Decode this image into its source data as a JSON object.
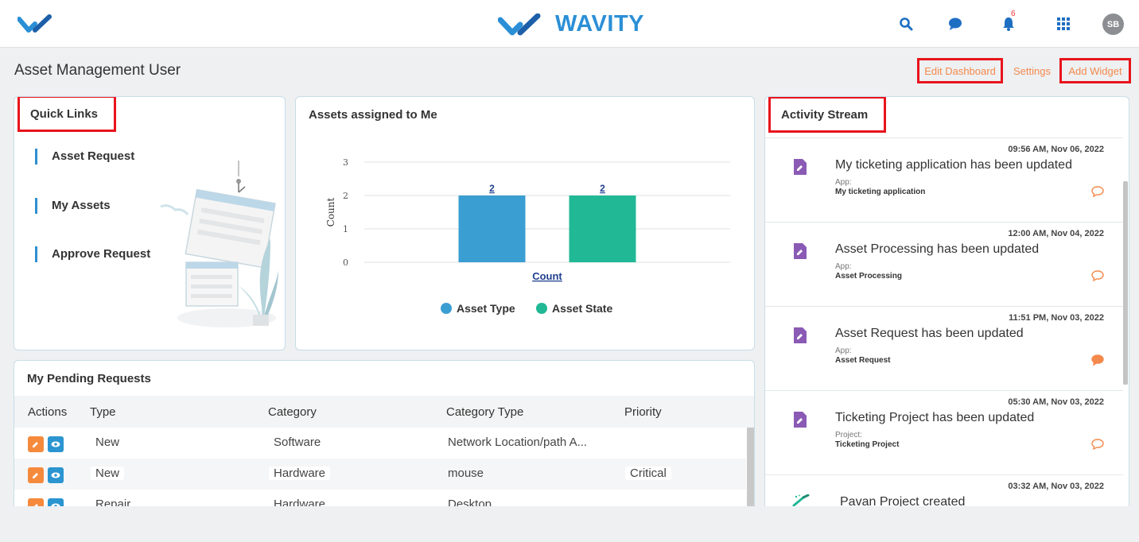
{
  "header": {
    "brand": "WAVITY",
    "notification_count": "6",
    "avatar_initials": "SB",
    "icons": [
      "search-icon",
      "chat-icon",
      "bell-icon",
      "apps-grid-icon"
    ],
    "accent_color": "#2b8fd6"
  },
  "page": {
    "title": "Asset Management User",
    "edit_dashboard": "Edit Dashboard",
    "settings": "Settings",
    "add_widget": "Add Widget"
  },
  "quick_links": {
    "title": "Quick Links",
    "items": [
      "Asset Request",
      "My Assets",
      "Approve Request"
    ]
  },
  "assets_chart": {
    "title": "Assets assigned to Me"
  },
  "chart_data": {
    "type": "bar",
    "categories": [
      "Count"
    ],
    "series": [
      {
        "name": "Asset Type",
        "values": [
          2
        ],
        "color": "#3a9ed2"
      },
      {
        "name": "Asset State",
        "values": [
          2
        ],
        "color": "#21b896"
      }
    ],
    "ylabel": "Count",
    "xlabel": "",
    "ylim": [
      0,
      3
    ],
    "yticks": [
      "0",
      "1",
      "2",
      "3"
    ],
    "data_labels": [
      "2",
      "2"
    ],
    "grid": true,
    "legend": "bottom"
  },
  "pending_requests": {
    "title": "My Pending Requests",
    "columns": [
      "Actions",
      "Type",
      "Category",
      "Category Type",
      "Priority"
    ],
    "rows": [
      {
        "type": "New",
        "category": "Software",
        "category_type": "Network Location/path A...",
        "priority": ""
      },
      {
        "type": "New",
        "category": "Hardware",
        "category_type": "mouse",
        "priority": "Critical"
      },
      {
        "type": "Repair",
        "category": "Hardware",
        "category_type": "Desktop",
        "priority": ""
      }
    ]
  },
  "activity_stream": {
    "title": "Activity Stream",
    "items": [
      {
        "time": "09:56 AM, Nov 06, 2022",
        "text": "My ticketing application has been updated",
        "type": "App:",
        "name": "My ticketing application",
        "comment_filled": false
      },
      {
        "time": "12:00 AM, Nov 04, 2022",
        "text": "Asset Processing has been updated",
        "type": "App:",
        "name": "Asset Processing",
        "comment_filled": false
      },
      {
        "time": "11:51 PM, Nov 03, 2022",
        "text": "Asset Request has been updated",
        "type": "App:",
        "name": "Asset Request",
        "comment_filled": true
      },
      {
        "time": "05:30 AM, Nov 03, 2022",
        "text": "Ticketing Project has been updated",
        "type": "Project:",
        "name": "Ticketing Project",
        "comment_filled": false
      },
      {
        "time": "03:32 AM, Nov 03, 2022",
        "text": "Pavan Project created",
        "type": "",
        "name": "",
        "comment_filled": false
      }
    ]
  }
}
